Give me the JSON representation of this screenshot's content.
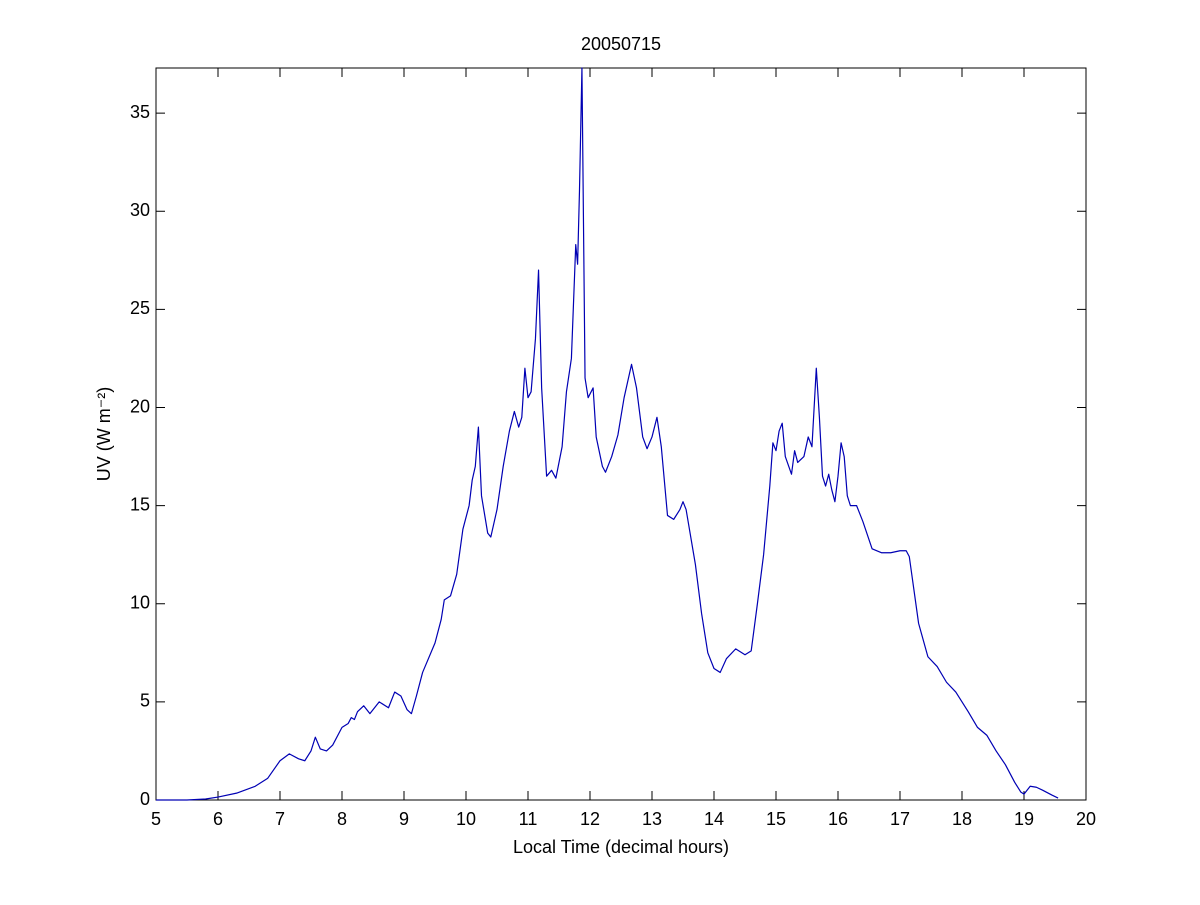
{
  "chart_data": {
    "type": "line",
    "title": "20050715",
    "xlabel": "Local Time (decimal hours)",
    "ylabel": "UV (W m⁻²)",
    "xlim": [
      5,
      20
    ],
    "ylim": [
      0,
      37.3
    ],
    "xticks": [
      5,
      6,
      7,
      8,
      9,
      10,
      11,
      12,
      13,
      14,
      15,
      16,
      17,
      18,
      19,
      20
    ],
    "yticks": [
      0,
      5,
      10,
      15,
      20,
      25,
      30,
      35
    ],
    "grid": false,
    "series": [
      {
        "color": "#0000b4",
        "x": [
          5.0,
          5.5,
          5.8,
          6.0,
          6.3,
          6.6,
          6.8,
          7.0,
          7.15,
          7.3,
          7.4,
          7.5,
          7.57,
          7.65,
          7.75,
          7.85,
          8.0,
          8.1,
          8.15,
          8.2,
          8.25,
          8.35,
          8.45,
          8.6,
          8.75,
          8.85,
          8.95,
          9.05,
          9.12,
          9.2,
          9.3,
          9.5,
          9.6,
          9.65,
          9.75,
          9.85,
          9.95,
          10.05,
          10.1,
          10.15,
          10.2,
          10.25,
          10.35,
          10.4,
          10.5,
          10.6,
          10.7,
          10.78,
          10.85,
          10.9,
          10.95,
          11.0,
          11.05,
          11.12,
          11.17,
          11.22,
          11.3,
          11.38,
          11.45,
          11.55,
          11.62,
          11.7,
          11.77,
          11.8,
          11.83,
          11.87,
          11.92,
          11.97,
          12.05,
          12.1,
          12.2,
          12.25,
          12.35,
          12.45,
          12.55,
          12.67,
          12.75,
          12.85,
          12.92,
          13.0,
          13.08,
          13.15,
          13.25,
          13.35,
          13.45,
          13.5,
          13.55,
          13.7,
          13.8,
          13.9,
          14.0,
          14.1,
          14.2,
          14.35,
          14.5,
          14.6,
          14.7,
          14.8,
          14.9,
          14.95,
          15.0,
          15.05,
          15.1,
          15.15,
          15.25,
          15.3,
          15.35,
          15.45,
          15.52,
          15.58,
          15.65,
          15.7,
          15.75,
          15.8,
          15.85,
          15.9,
          15.95,
          16.0,
          16.05,
          16.1,
          16.15,
          16.2,
          16.3,
          16.4,
          16.55,
          16.7,
          16.85,
          17.0,
          17.1,
          17.15,
          17.3,
          17.45,
          17.6,
          17.75,
          17.9,
          18.1,
          18.25,
          18.4,
          18.55,
          18.7,
          18.85,
          18.95,
          19.0,
          19.1,
          19.2,
          19.3,
          19.45,
          19.55
        ],
        "values": [
          0,
          0,
          0.05,
          0.15,
          0.35,
          0.7,
          1.1,
          2.0,
          2.35,
          2.1,
          2.0,
          2.5,
          3.2,
          2.6,
          2.5,
          2.8,
          3.7,
          3.9,
          4.2,
          4.1,
          4.5,
          4.8,
          4.4,
          5.0,
          4.7,
          5.5,
          5.3,
          4.6,
          4.4,
          5.3,
          6.5,
          8.0,
          9.2,
          10.2,
          10.4,
          11.5,
          13.8,
          15.0,
          16.3,
          17.0,
          19.0,
          15.5,
          13.6,
          13.4,
          14.8,
          17.0,
          18.8,
          19.8,
          19.0,
          19.5,
          22.0,
          20.5,
          20.8,
          23.5,
          27.0,
          21.0,
          16.5,
          16.8,
          16.4,
          18.0,
          20.8,
          22.5,
          28.3,
          27.3,
          31.0,
          37.3,
          21.5,
          20.5,
          21.0,
          18.5,
          17.0,
          16.7,
          17.5,
          18.6,
          20.5,
          22.2,
          21.0,
          18.5,
          17.9,
          18.5,
          19.5,
          18.0,
          14.5,
          14.3,
          14.8,
          15.2,
          14.8,
          12.0,
          9.5,
          7.5,
          6.7,
          6.5,
          7.2,
          7.7,
          7.4,
          7.6,
          10.0,
          12.5,
          16.0,
          18.2,
          17.8,
          18.8,
          19.2,
          17.5,
          16.6,
          17.8,
          17.2,
          17.5,
          18.5,
          18.0,
          22.0,
          19.5,
          16.5,
          16.0,
          16.6,
          15.8,
          15.2,
          16.5,
          18.2,
          17.5,
          15.5,
          15.0,
          15.0,
          14.2,
          12.8,
          12.6,
          12.6,
          12.7,
          12.7,
          12.4,
          9.0,
          7.3,
          6.8,
          6.0,
          5.5,
          4.5,
          3.7,
          3.3,
          2.5,
          1.8,
          0.9,
          0.4,
          0.3,
          0.7,
          0.65,
          0.5,
          0.25,
          0.1
        ]
      }
    ]
  }
}
